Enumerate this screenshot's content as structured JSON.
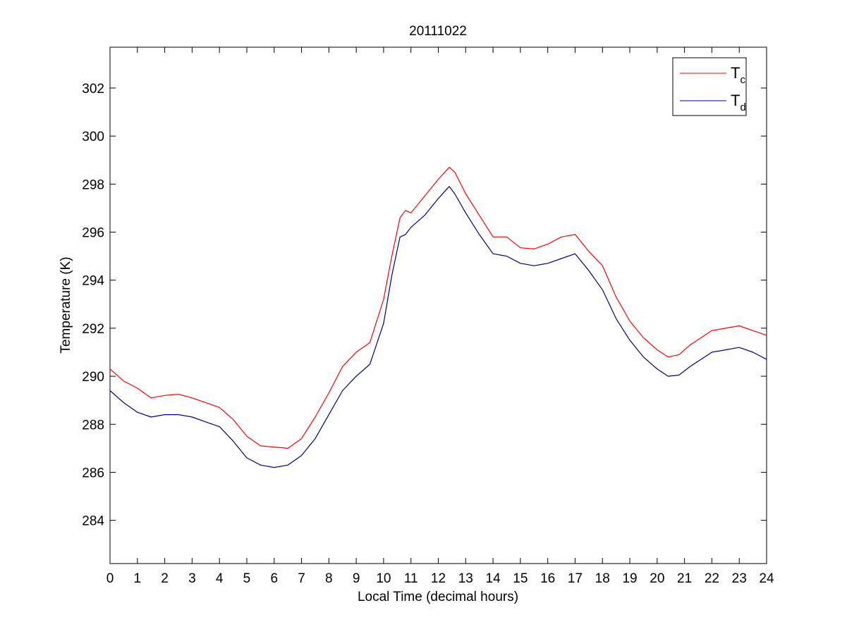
{
  "chart_data": {
    "type": "line",
    "title": "20111022",
    "xlabel": "Local Time (decimal hours)",
    "ylabel": "Temperature (K)",
    "xlim": [
      0,
      24
    ],
    "ylim": [
      282.2,
      303.7
    ],
    "x_ticks": [
      0,
      1,
      2,
      3,
      4,
      5,
      6,
      7,
      8,
      9,
      10,
      11,
      12,
      13,
      14,
      15,
      16,
      17,
      18,
      19,
      20,
      21,
      22,
      23,
      24
    ],
    "y_ticks": [
      284,
      286,
      288,
      290,
      292,
      294,
      296,
      298,
      300,
      302
    ],
    "grid": false,
    "legend_position": "top-right",
    "series": [
      {
        "name": "T",
        "name_subscript": "c",
        "color": "#ff0000",
        "x": [
          0,
          0.5,
          1,
          1.5,
          2,
          2.5,
          3,
          3.5,
          4,
          4.5,
          5,
          5.5,
          6,
          6.5,
          7,
          7.5,
          8,
          8.5,
          9,
          9.5,
          10,
          10.3,
          10.6,
          10.8,
          11,
          11.5,
          12,
          12.4,
          12.6,
          13,
          13.5,
          14,
          14.5,
          15,
          15.5,
          16,
          16.5,
          17,
          17.5,
          18,
          18.5,
          19,
          19.5,
          20,
          20.4,
          20.8,
          21.2,
          21.6,
          22,
          22.5,
          23,
          23.5,
          24
        ],
        "values": [
          290.3,
          289.8,
          289.5,
          289.1,
          289.2,
          289.25,
          289.1,
          288.9,
          288.7,
          288.2,
          287.5,
          287.1,
          287.05,
          287.0,
          287.4,
          288.3,
          289.3,
          290.4,
          291.0,
          291.4,
          293.2,
          295.0,
          296.6,
          296.9,
          296.8,
          297.5,
          298.2,
          298.7,
          298.5,
          297.6,
          296.7,
          295.8,
          295.8,
          295.35,
          295.3,
          295.5,
          295.8,
          295.9,
          295.2,
          294.6,
          293.3,
          292.3,
          291.6,
          291.1,
          290.8,
          290.9,
          291.3,
          291.6,
          291.9,
          292.0,
          292.1,
          291.9,
          291.7
        ]
      },
      {
        "name": "T",
        "name_subscript": "d",
        "color": "#00008b",
        "x": [
          0,
          0.5,
          1,
          1.5,
          2,
          2.5,
          3,
          3.5,
          4,
          4.5,
          5,
          5.5,
          6,
          6.5,
          7,
          7.5,
          8,
          8.5,
          9,
          9.5,
          10,
          10.3,
          10.6,
          10.8,
          11,
          11.5,
          12,
          12.4,
          12.6,
          13,
          13.5,
          14,
          14.5,
          15,
          15.5,
          16,
          16.5,
          17,
          17.5,
          18,
          18.5,
          19,
          19.5,
          20,
          20.4,
          20.8,
          21.2,
          21.6,
          22,
          22.5,
          23,
          23.5,
          24
        ],
        "values": [
          289.4,
          288.9,
          288.5,
          288.3,
          288.4,
          288.4,
          288.3,
          288.1,
          287.9,
          287.3,
          286.6,
          286.3,
          286.2,
          286.3,
          286.7,
          287.4,
          288.4,
          289.4,
          290.0,
          290.5,
          292.2,
          294.2,
          295.8,
          295.9,
          296.2,
          296.7,
          297.4,
          297.9,
          297.6,
          296.8,
          295.9,
          295.1,
          295.0,
          294.7,
          294.6,
          294.7,
          294.9,
          295.1,
          294.4,
          293.6,
          292.4,
          291.5,
          290.8,
          290.3,
          290.0,
          290.05,
          290.4,
          290.7,
          291.0,
          291.1,
          291.2,
          291.0,
          290.7
        ]
      }
    ]
  }
}
